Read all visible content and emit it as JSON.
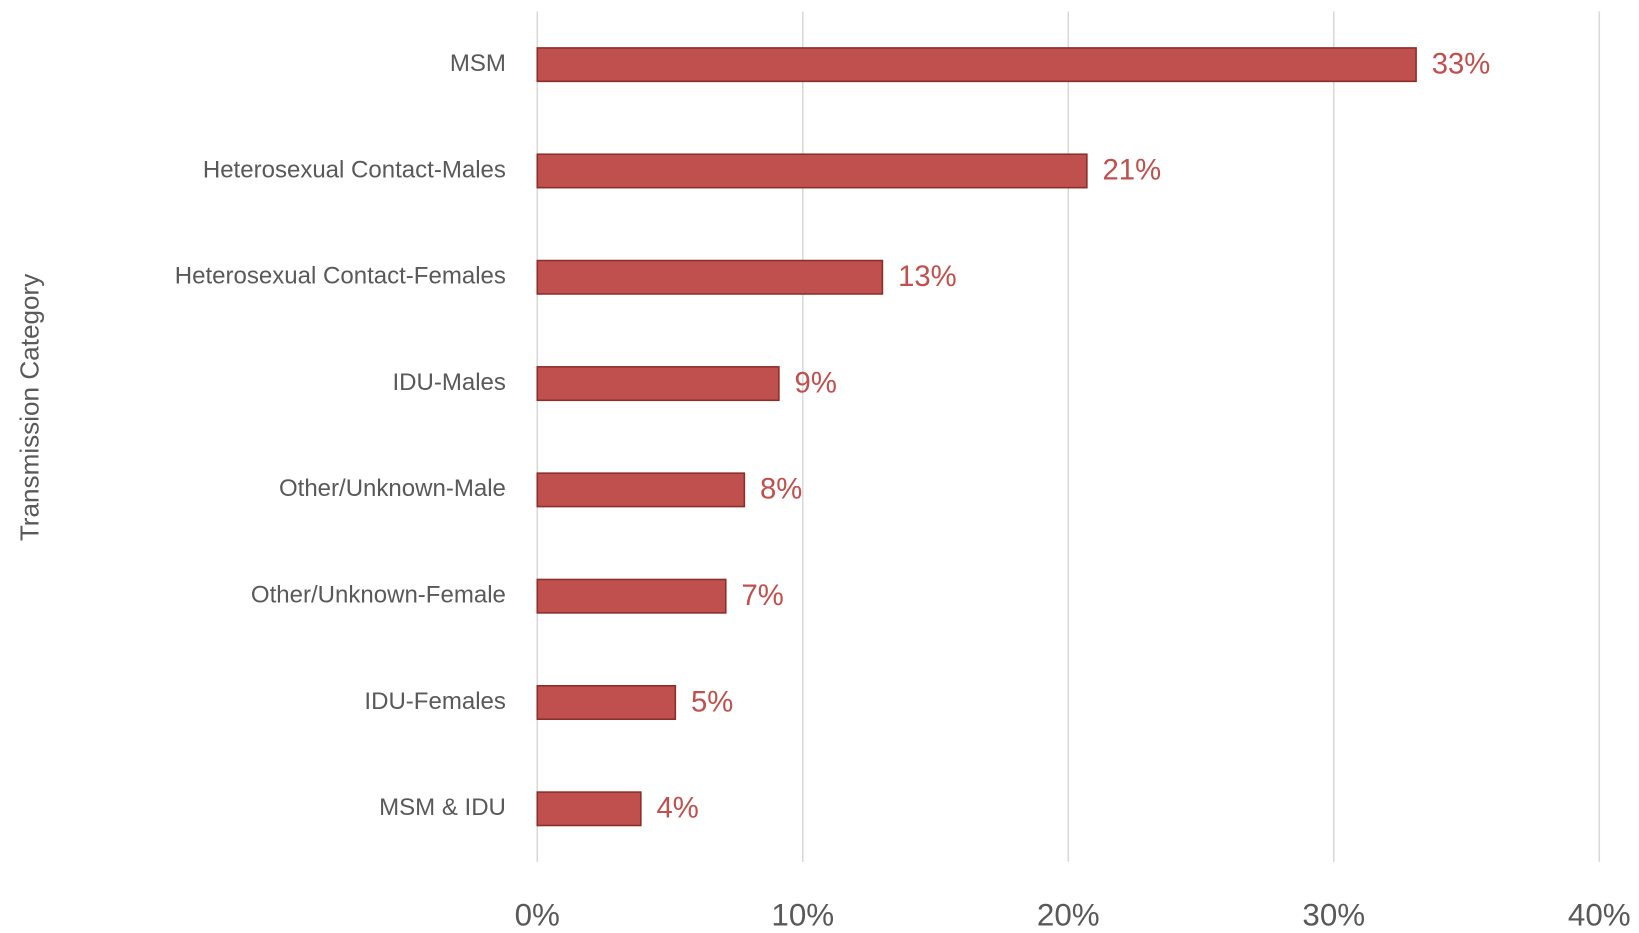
{
  "chart_data": {
    "type": "bar",
    "orientation": "horizontal",
    "y_axis_label": "Transmission Category",
    "categories": [
      "MSM",
      "Heterosexual Contact-Males",
      "Heterosexual Contact-Females",
      "IDU-Males",
      "Other/Unknown-Male",
      "Other/Unknown-Female",
      "IDU-Females",
      "MSM & IDU"
    ],
    "values": [
      33.1,
      20.7,
      13.0,
      9.1,
      7.8,
      7.1,
      5.2,
      3.9
    ],
    "value_labels": [
      "33%",
      "21%",
      "13%",
      "9%",
      "8%",
      "7%",
      "5%",
      "4%"
    ],
    "color": "#c0504d",
    "xlim": [
      0,
      40
    ],
    "xticks": [
      {
        "value": 0,
        "label": "0%"
      },
      {
        "value": 10,
        "label": "10%"
      },
      {
        "value": 20,
        "label": "20%"
      },
      {
        "value": 30,
        "label": "30%"
      },
      {
        "value": 40,
        "label": "40%"
      }
    ],
    "grid": true
  }
}
